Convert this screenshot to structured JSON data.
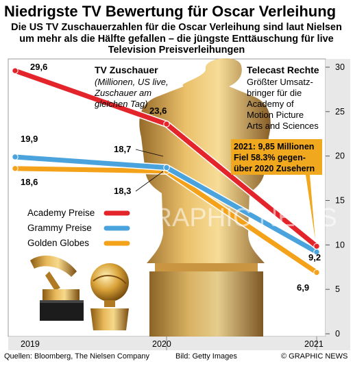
{
  "title": "Niedrigste TV Bewertung für Oscar Verleihung",
  "subtitle": "Die US TV Zuschauerzahlen für die Oscar Verleihung sind laut Nielsen um mehr als die Hälfte gefallen – die jüngste Enttäuschung für live Television Preisverleihungen",
  "annotations": {
    "viewers_heading": "TV Zuschauer",
    "viewers_note": [
      "(Millionen, US live,",
      "Zuschauer am",
      "gleichen Tag)"
    ],
    "rights_heading": "Telecast Rechte",
    "rights_text": [
      "Größter Umsatz-",
      "bringer für die",
      "Academy of",
      "Motion Picture",
      "Arts and Sciences"
    ],
    "callout": [
      "2021: 9,85 Millionen",
      "Fiel  58.3% gegen-",
      "über 2020 Zusehern"
    ]
  },
  "watermark": "GRAPHIC NEWS",
  "footer": {
    "sources": "Quellen: Bloomberg, The Nielsen Company",
    "image_credit": "Bild: Getty Images",
    "copyright": "© GRAPHIC NEWS"
  },
  "colors": {
    "academy": "#e3252b",
    "grammy": "#4aa3dc",
    "golden_globes": "#f5a21b",
    "callout_bg": "#f0a81e",
    "axis_band": "#e8e8e8"
  },
  "chart_data": {
    "type": "line",
    "x": [
      "2019",
      "2020",
      "2021"
    ],
    "ylim": [
      0,
      30
    ],
    "yticks": [
      "0",
      "5",
      "10",
      "15",
      "20",
      "25",
      "30"
    ],
    "series": [
      {
        "name": "Academy Preise",
        "values": [
          29.6,
          23.6,
          9.85
        ],
        "labels": [
          "29,6",
          "23,6",
          ""
        ]
      },
      {
        "name": "Grammy Preise",
        "values": [
          19.9,
          18.7,
          9.2
        ],
        "labels": [
          "19,9",
          "18,7",
          "9,2"
        ]
      },
      {
        "name": "Golden Globes",
        "values": [
          18.6,
          18.3,
          6.9
        ],
        "labels": [
          "18,6",
          "18,3",
          "6,9"
        ]
      }
    ]
  }
}
